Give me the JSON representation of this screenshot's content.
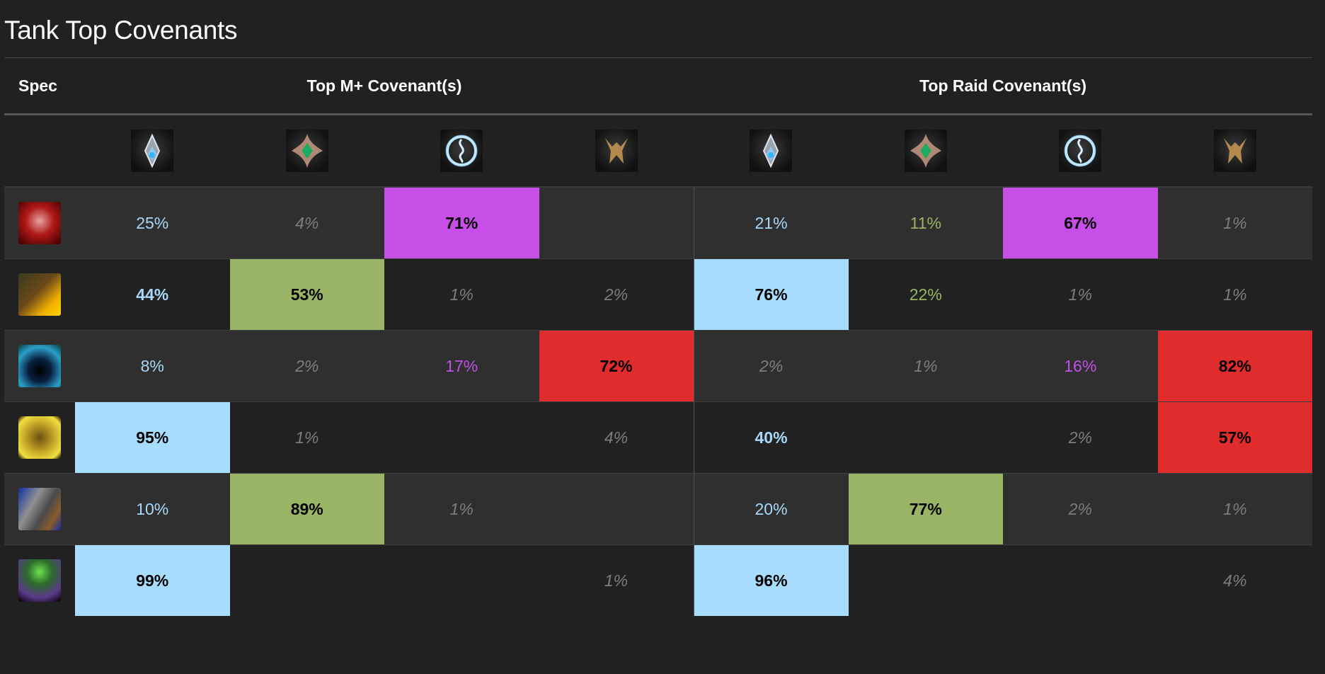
{
  "title": "Tank Top Covenants",
  "headers": {
    "spec": "Spec",
    "mplus": "Top M+ Covenant(s)",
    "raid": "Top Raid Covenant(s)"
  },
  "covenants": [
    {
      "name": "kyrian",
      "icon": "kyrian-icon"
    },
    {
      "name": "necrolord",
      "icon": "necrolord-icon"
    },
    {
      "name": "night-fae",
      "icon": "night-fae-icon"
    },
    {
      "name": "venthyr",
      "icon": "venthyr-icon"
    }
  ],
  "colors": {
    "kyrian": "#a8dcfc",
    "necrolord": "#98b464",
    "night_fae": "#c84ee8",
    "venthyr": "#e02c2c",
    "muted": "#7d7d7d",
    "background": "#212121",
    "row_alt": "#2f2f2f"
  },
  "rows": [
    {
      "spec": "blood-death-knight",
      "icon": "blood-dk-spec-icon",
      "mplus": [
        "25%",
        "4%",
        "71%",
        ""
      ],
      "raid": [
        "21%",
        "11%",
        "67%",
        "1%"
      ]
    },
    {
      "spec": "brewmaster-monk",
      "icon": "brewmaster-spec-icon",
      "mplus": [
        "44%",
        "53%",
        "1%",
        "2%"
      ],
      "raid": [
        "76%",
        "22%",
        "1%",
        "1%"
      ]
    },
    {
      "spec": "guardian-druid",
      "icon": "guardian-spec-icon",
      "mplus": [
        "8%",
        "2%",
        "17%",
        "72%"
      ],
      "raid": [
        "2%",
        "1%",
        "16%",
        "82%"
      ]
    },
    {
      "spec": "protection-paladin",
      "icon": "prot-paladin-spec-icon",
      "mplus": [
        "95%",
        "1%",
        "",
        "4%"
      ],
      "raid": [
        "40%",
        "",
        "2%",
        "57%"
      ]
    },
    {
      "spec": "protection-warrior",
      "icon": "prot-warrior-spec-icon",
      "mplus": [
        "10%",
        "89%",
        "1%",
        ""
      ],
      "raid": [
        "20%",
        "77%",
        "2%",
        "1%"
      ]
    },
    {
      "spec": "vengeance-demon-hunter",
      "icon": "vengeance-spec-icon",
      "mplus": [
        "99%",
        "",
        "",
        "1%"
      ],
      "raid": [
        "96%",
        "",
        "",
        "4%"
      ]
    }
  ],
  "cell_styles": [
    {
      "mplus": [
        "v-blue",
        "v-gray",
        "hl-purple",
        ""
      ],
      "raid": [
        "v-blue",
        "v-green",
        "hl-purple",
        "v-gray"
      ]
    },
    {
      "mplus": [
        "v-blue-b",
        "hl-green",
        "v-gray",
        "v-gray"
      ],
      "raid": [
        "hl-blue",
        "v-green",
        "v-gray",
        "v-gray"
      ]
    },
    {
      "mplus": [
        "v-blue",
        "v-gray",
        "v-purple",
        "hl-red"
      ],
      "raid": [
        "v-gray",
        "v-gray",
        "v-purple",
        "hl-red"
      ]
    },
    {
      "mplus": [
        "hl-blue",
        "v-gray",
        "",
        "v-gray"
      ],
      "raid": [
        "v-blue-b",
        "",
        "v-gray",
        "hl-red"
      ]
    },
    {
      "mplus": [
        "v-blue",
        "hl-green",
        "v-gray",
        ""
      ],
      "raid": [
        "v-blue",
        "hl-green",
        "v-gray",
        "v-gray"
      ]
    },
    {
      "mplus": [
        "hl-blue",
        "",
        "",
        "v-gray"
      ],
      "raid": [
        "hl-blue",
        "",
        "",
        "v-gray"
      ]
    }
  ]
}
